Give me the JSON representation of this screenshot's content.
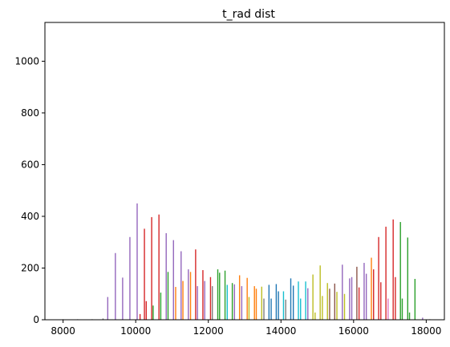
{
  "chart_data": {
    "type": "bar",
    "title": "t_rad dist",
    "xlabel": "",
    "ylabel": "",
    "xlim": [
      7500,
      18500
    ],
    "ylim": [
      0,
      1150
    ],
    "xticks": [
      8000,
      10000,
      12000,
      14000,
      16000,
      18000
    ],
    "yticks": [
      0,
      200,
      400,
      600,
      800,
      1000
    ],
    "grid": false,
    "legend": "none",
    "palette": [
      "#1f77b4",
      "#ff7f0e",
      "#2ca02c",
      "#d62728",
      "#9467bd",
      "#8c564b",
      "#e377c2",
      "#7f7f7f",
      "#bcbd22",
      "#17becf"
    ],
    "bars": [
      {
        "x": 8000,
        "value": 2,
        "color": "#7f7f7f"
      },
      {
        "x": 8400,
        "value": 2,
        "color": "#7f7f7f"
      },
      {
        "x": 8800,
        "value": 2,
        "color": "#7f7f7f"
      },
      {
        "x": 9100,
        "value": 5,
        "color": "#7f7f7f"
      },
      {
        "x": 9230,
        "value": 88,
        "color": "#9467bd"
      },
      {
        "x": 9440,
        "value": 258,
        "color": "#9467bd"
      },
      {
        "x": 9640,
        "value": 163,
        "color": "#9467bd"
      },
      {
        "x": 9840,
        "value": 320,
        "color": "#9467bd"
      },
      {
        "x": 10040,
        "value": 450,
        "color": "#9467bd"
      },
      {
        "x": 10120,
        "value": 22,
        "color": "#d62728"
      },
      {
        "x": 10240,
        "value": 352,
        "color": "#d62728"
      },
      {
        "x": 10290,
        "value": 72,
        "color": "#d62728"
      },
      {
        "x": 10440,
        "value": 397,
        "color": "#d62728"
      },
      {
        "x": 10480,
        "value": 55,
        "color": "#2ca02c"
      },
      {
        "x": 10640,
        "value": 407,
        "color": "#d62728"
      },
      {
        "x": 10690,
        "value": 105,
        "color": "#2ca02c"
      },
      {
        "x": 10840,
        "value": 335,
        "color": "#9467bd"
      },
      {
        "x": 10890,
        "value": 185,
        "color": "#2ca02c"
      },
      {
        "x": 11040,
        "value": 308,
        "color": "#9467bd"
      },
      {
        "x": 11100,
        "value": 127,
        "color": "#ff7f0e"
      },
      {
        "x": 11250,
        "value": 265,
        "color": "#9467bd"
      },
      {
        "x": 11300,
        "value": 150,
        "color": "#ff7f0e"
      },
      {
        "x": 11450,
        "value": 195,
        "color": "#9467bd"
      },
      {
        "x": 11510,
        "value": 185,
        "color": "#ff7f0e"
      },
      {
        "x": 11650,
        "value": 272,
        "color": "#d62728"
      },
      {
        "x": 11700,
        "value": 130,
        "color": "#9467bd"
      },
      {
        "x": 11850,
        "value": 192,
        "color": "#d62728"
      },
      {
        "x": 11900,
        "value": 150,
        "color": "#9467bd"
      },
      {
        "x": 12060,
        "value": 165,
        "color": "#d62728"
      },
      {
        "x": 12110,
        "value": 130,
        "color": "#7f7f7f"
      },
      {
        "x": 12260,
        "value": 195,
        "color": "#2ca02c"
      },
      {
        "x": 12310,
        "value": 182,
        "color": "#2ca02c"
      },
      {
        "x": 12460,
        "value": 190,
        "color": "#2ca02c"
      },
      {
        "x": 12520,
        "value": 135,
        "color": "#17becf"
      },
      {
        "x": 12660,
        "value": 142,
        "color": "#2ca02c"
      },
      {
        "x": 12720,
        "value": 137,
        "color": "#9467bd"
      },
      {
        "x": 12860,
        "value": 172,
        "color": "#ff7f0e"
      },
      {
        "x": 12920,
        "value": 130,
        "color": "#9467bd"
      },
      {
        "x": 13070,
        "value": 162,
        "color": "#ff7f0e"
      },
      {
        "x": 13120,
        "value": 88,
        "color": "#bcbd22"
      },
      {
        "x": 13270,
        "value": 130,
        "color": "#ff7f0e"
      },
      {
        "x": 13320,
        "value": 120,
        "color": "#ff7f0e"
      },
      {
        "x": 13470,
        "value": 128,
        "color": "#bcbd22"
      },
      {
        "x": 13530,
        "value": 82,
        "color": "#7f7f7f"
      },
      {
        "x": 13670,
        "value": 135,
        "color": "#1f77b4"
      },
      {
        "x": 13730,
        "value": 82,
        "color": "#1f77b4"
      },
      {
        "x": 13870,
        "value": 138,
        "color": "#1f77b4"
      },
      {
        "x": 13930,
        "value": 110,
        "color": "#1f77b4"
      },
      {
        "x": 14070,
        "value": 110,
        "color": "#17becf"
      },
      {
        "x": 14130,
        "value": 78,
        "color": "#7f7f7f"
      },
      {
        "x": 14270,
        "value": 160,
        "color": "#1f77b4"
      },
      {
        "x": 14340,
        "value": 132,
        "color": "#1f77b4"
      },
      {
        "x": 14480,
        "value": 148,
        "color": "#17becf"
      },
      {
        "x": 14540,
        "value": 82,
        "color": "#17becf"
      },
      {
        "x": 14680,
        "value": 148,
        "color": "#17becf"
      },
      {
        "x": 14740,
        "value": 122,
        "color": "#9467bd"
      },
      {
        "x": 14880,
        "value": 175,
        "color": "#bcbd22"
      },
      {
        "x": 14940,
        "value": 28,
        "color": "#bcbd22"
      },
      {
        "x": 15080,
        "value": 210,
        "color": "#bcbd22"
      },
      {
        "x": 15140,
        "value": 92,
        "color": "#bcbd22"
      },
      {
        "x": 15280,
        "value": 142,
        "color": "#bcbd22"
      },
      {
        "x": 15340,
        "value": 120,
        "color": "#8c564b"
      },
      {
        "x": 15480,
        "value": 140,
        "color": "#8c564b"
      },
      {
        "x": 15540,
        "value": 108,
        "color": "#bcbd22"
      },
      {
        "x": 15690,
        "value": 213,
        "color": "#9467bd"
      },
      {
        "x": 15750,
        "value": 100,
        "color": "#bcbd22"
      },
      {
        "x": 15890,
        "value": 160,
        "color": "#9467bd"
      },
      {
        "x": 15950,
        "value": 165,
        "color": "#9467bd"
      },
      {
        "x": 16090,
        "value": 205,
        "color": "#8c564b"
      },
      {
        "x": 16150,
        "value": 125,
        "color": "#d62728"
      },
      {
        "x": 16290,
        "value": 220,
        "color": "#9467bd"
      },
      {
        "x": 16350,
        "value": 178,
        "color": "#9467bd"
      },
      {
        "x": 16490,
        "value": 240,
        "color": "#ff7f0e"
      },
      {
        "x": 16550,
        "value": 195,
        "color": "#d62728"
      },
      {
        "x": 16690,
        "value": 320,
        "color": "#d62728"
      },
      {
        "x": 16750,
        "value": 145,
        "color": "#d62728"
      },
      {
        "x": 16890,
        "value": 360,
        "color": "#d62728"
      },
      {
        "x": 16950,
        "value": 82,
        "color": "#e377c2"
      },
      {
        "x": 17090,
        "value": 388,
        "color": "#d62728"
      },
      {
        "x": 17150,
        "value": 165,
        "color": "#d62728"
      },
      {
        "x": 17290,
        "value": 378,
        "color": "#2ca02c"
      },
      {
        "x": 17340,
        "value": 82,
        "color": "#2ca02c"
      },
      {
        "x": 17490,
        "value": 318,
        "color": "#2ca02c"
      },
      {
        "x": 17540,
        "value": 28,
        "color": "#2ca02c"
      },
      {
        "x": 17690,
        "value": 158,
        "color": "#2ca02c"
      },
      {
        "x": 17900,
        "value": 8,
        "color": "#9467bd"
      },
      {
        "x": 18100,
        "value": 2,
        "color": "#7f7f7f"
      }
    ]
  }
}
